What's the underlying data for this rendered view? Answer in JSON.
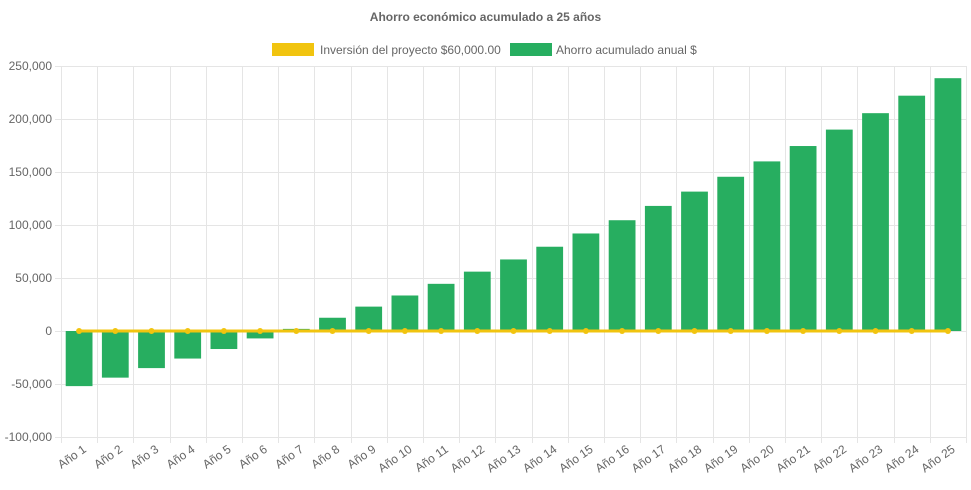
{
  "chart_data": {
    "type": "bar",
    "title": "Ahorro económico acumulado a 25 años",
    "xlabel": "",
    "ylabel": "",
    "ylim": [
      -100000,
      250000
    ],
    "yticks": [
      250000,
      200000,
      150000,
      100000,
      50000,
      0,
      -50000,
      -100000
    ],
    "ytick_labels": [
      "250,000",
      "200,000",
      "150,000",
      "100,000",
      "50,000",
      "0",
      "-50,000",
      "-100,000"
    ],
    "grid": true,
    "legend_position": "top",
    "categories": [
      "Año 1",
      "Año 2",
      "Año 3",
      "Año 4",
      "Año 5",
      "Año 6",
      "Año 7",
      "Año 8",
      "Año 9",
      "Año 10",
      "Año 11",
      "Año 12",
      "Año 13",
      "Año 14",
      "Año 15",
      "Año 16",
      "Año 17",
      "Año 18",
      "Año 19",
      "Año 20",
      "Año 21",
      "Año 22",
      "Año 23",
      "Año 24",
      "Año 25"
    ],
    "series": [
      {
        "name": "Inversión del proyecto $60,000.00",
        "type": "line",
        "color": "#f1c40f",
        "values": [
          0,
          0,
          0,
          0,
          0,
          0,
          0,
          0,
          0,
          0,
          0,
          0,
          0,
          0,
          0,
          0,
          0,
          0,
          0,
          0,
          0,
          0,
          0,
          0,
          0
        ]
      },
      {
        "name": "Ahorro acumulado anual $",
        "type": "bar",
        "color": "#27ae60",
        "values": [
          -52000,
          -44000,
          -35000,
          -26000,
          -17000,
          -7000,
          2000,
          12500,
          23000,
          33500,
          44500,
          56000,
          67500,
          79500,
          92000,
          104500,
          118000,
          131500,
          145500,
          160000,
          174500,
          190000,
          205500,
          222000,
          238500
        ]
      }
    ]
  }
}
